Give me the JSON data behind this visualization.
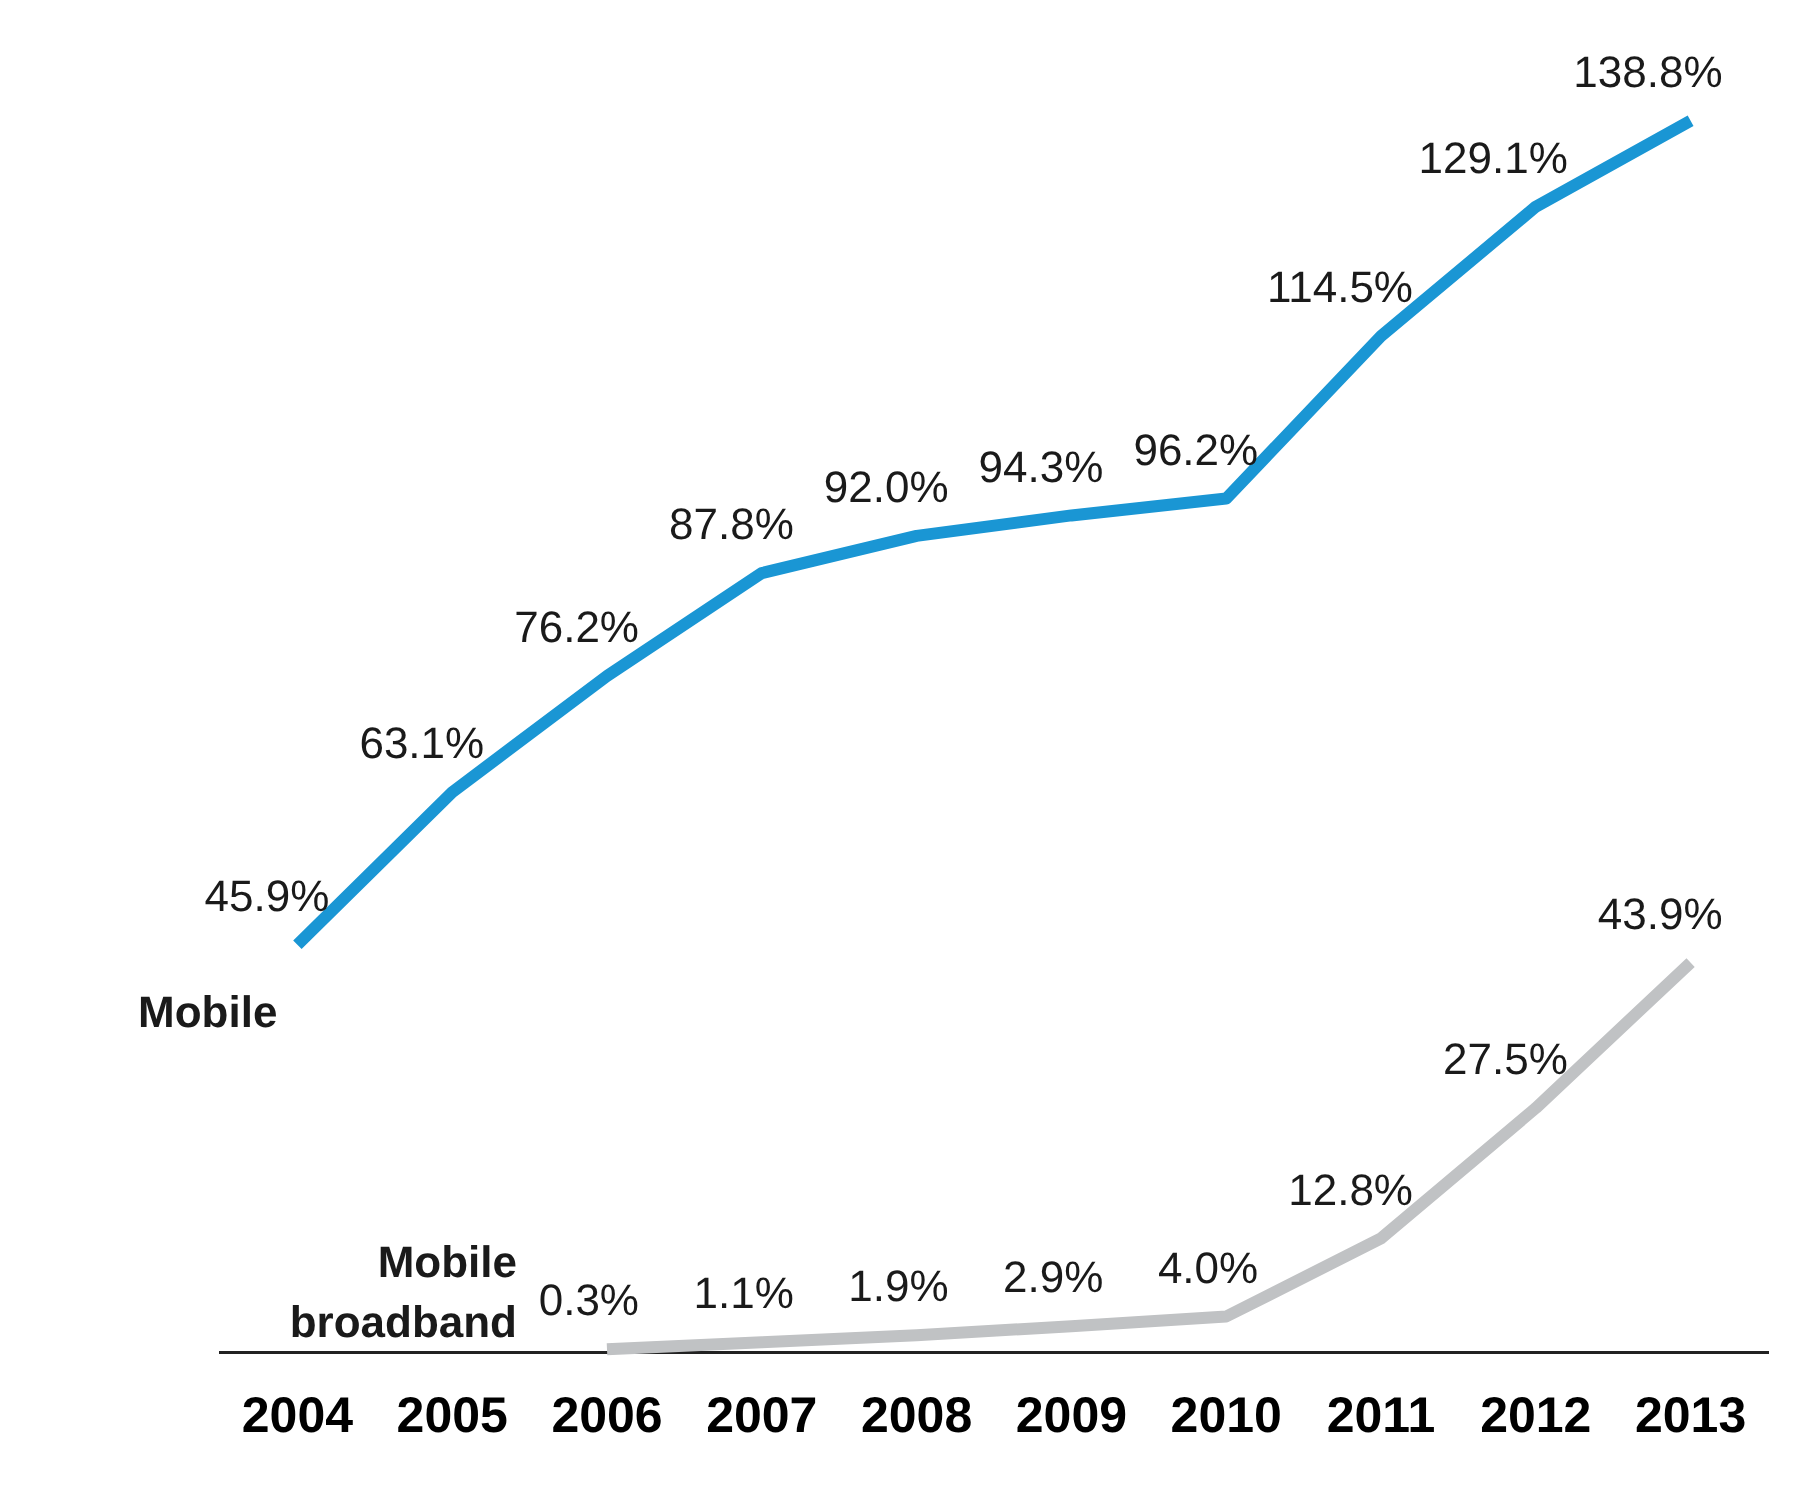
{
  "chart_data": {
    "type": "line",
    "categories": [
      "2004",
      "2005",
      "2006",
      "2007",
      "2008",
      "2009",
      "2010",
      "2011",
      "2012",
      "2013"
    ],
    "series": [
      {
        "name": "Mobile",
        "color": "#1a96d4",
        "values": [
          45.9,
          63.1,
          76.2,
          87.8,
          92.0,
          94.3,
          96.2,
          114.5,
          129.1,
          138.8
        ],
        "value_labels": [
          "45.9%",
          "63.1%",
          "76.2%",
          "87.8%",
          "92.0%",
          "94.3%",
          "96.2%",
          "114.5%",
          "129.1%",
          "138.8%"
        ]
      },
      {
        "name": "Mobile broadband",
        "color": "#c0c2c4",
        "values": [
          null,
          null,
          0.3,
          1.1,
          1.9,
          2.9,
          4.0,
          12.8,
          27.5,
          43.9
        ],
        "value_labels": [
          null,
          null,
          "0.3%",
          "1.1%",
          "1.9%",
          "2.9%",
          "4.0%",
          "12.8%",
          "27.5%",
          "43.9%"
        ]
      }
    ],
    "tick_labels": "x",
    "grid": false,
    "legend": false,
    "marker": "none",
    "line_style": "solid"
  }
}
